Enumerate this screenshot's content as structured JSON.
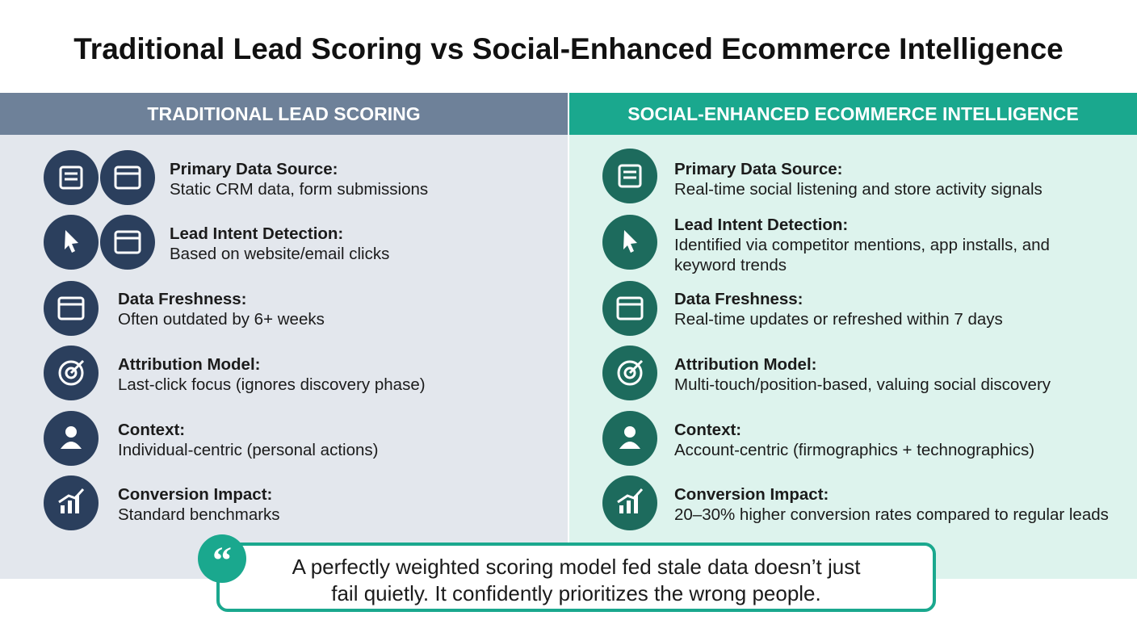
{
  "title": "Traditional Lead Scoring vs Social-Enhanced Ecommerce Intelligence",
  "columns": [
    {
      "header": "TRADITIONAL LEAD SCORING",
      "items": [
        {
          "label": "Primary Data Source:",
          "text": [
            "Static CRM data, form submissions"
          ]
        },
        {
          "label": "Lead Intent Detection:",
          "text": [
            "Based on website/email clicks"
          ]
        },
        {
          "label": "Data Freshness:",
          "text": [
            "Often outdated by 6+ weeks"
          ]
        },
        {
          "label": "Attribution Model:",
          "text": [
            "Last-click focus (ignores discovery phase)"
          ]
        },
        {
          "label": "Context:",
          "text": [
            "Individual-centric (personal actions)"
          ]
        },
        {
          "label": "Conversion Impact:",
          "text": [
            "Standard benchmarks"
          ]
        }
      ]
    },
    {
      "header": "SOCIAL-ENHANCED ECOMMERCE INTELLIGENCE",
      "items": [
        {
          "label": "Primary Data Source:",
          "text": [
            "Real-time social listening and store activity signals"
          ]
        },
        {
          "label": "Lead Intent Detection:",
          "text": [
            "Identified via competitor mentions, app installs, and",
            "keyword trends"
          ]
        },
        {
          "label": "Data Freshness:",
          "text": [
            "Real-time updates or refreshed within 7 days"
          ]
        },
        {
          "label": "Attribution Model:",
          "text": [
            "Multi-touch/position-based, valuing social discovery"
          ]
        },
        {
          "label": "Context:",
          "text": [
            "Account-centric (firmographics + technographics)"
          ]
        },
        {
          "label": "Conversion Impact:",
          "text": [
            "20–30% higher conversion rates compared to regular leads"
          ]
        }
      ]
    }
  ],
  "quote": {
    "lines": [
      "A perfectly weighted scoring model fed stale data doesn’t just",
      "fail quietly. It confidently prioritizes the wrong people."
    ]
  }
}
